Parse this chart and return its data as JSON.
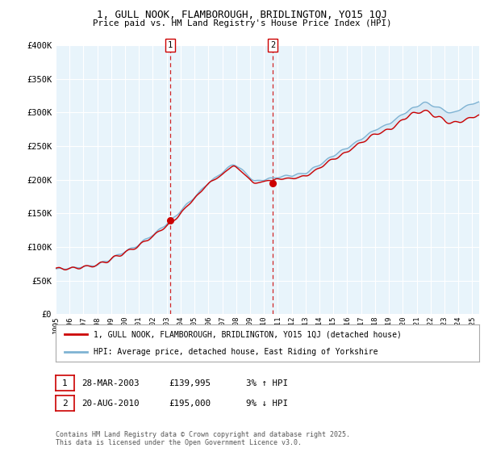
{
  "title": "1, GULL NOOK, FLAMBOROUGH, BRIDLINGTON, YO15 1QJ",
  "subtitle": "Price paid vs. HM Land Registry's House Price Index (HPI)",
  "ylabel_ticks": [
    "£0",
    "£50K",
    "£100K",
    "£150K",
    "£200K",
    "£250K",
    "£300K",
    "£350K",
    "£400K"
  ],
  "ylim": [
    0,
    400000
  ],
  "xlim_start": 1995.0,
  "xlim_end": 2025.5,
  "sale1_date": 2003.24,
  "sale1_price": 139995,
  "sale2_date": 2010.64,
  "sale2_price": 195000,
  "line_property_color": "#cc0000",
  "line_hpi_color": "#7fb3d3",
  "fill_color": "#daeaf5",
  "background_color": "#e8f4fb",
  "grid_color": "#ffffff",
  "legend_label_property": "1, GULL NOOK, FLAMBOROUGH, BRIDLINGTON, YO15 1QJ (detached house)",
  "legend_label_hpi": "HPI: Average price, detached house, East Riding of Yorkshire",
  "footnote": "Contains HM Land Registry data © Crown copyright and database right 2025.\nThis data is licensed under the Open Government Licence v3.0.",
  "marker_color": "#cc0000",
  "dashed_line_color": "#cc0000"
}
